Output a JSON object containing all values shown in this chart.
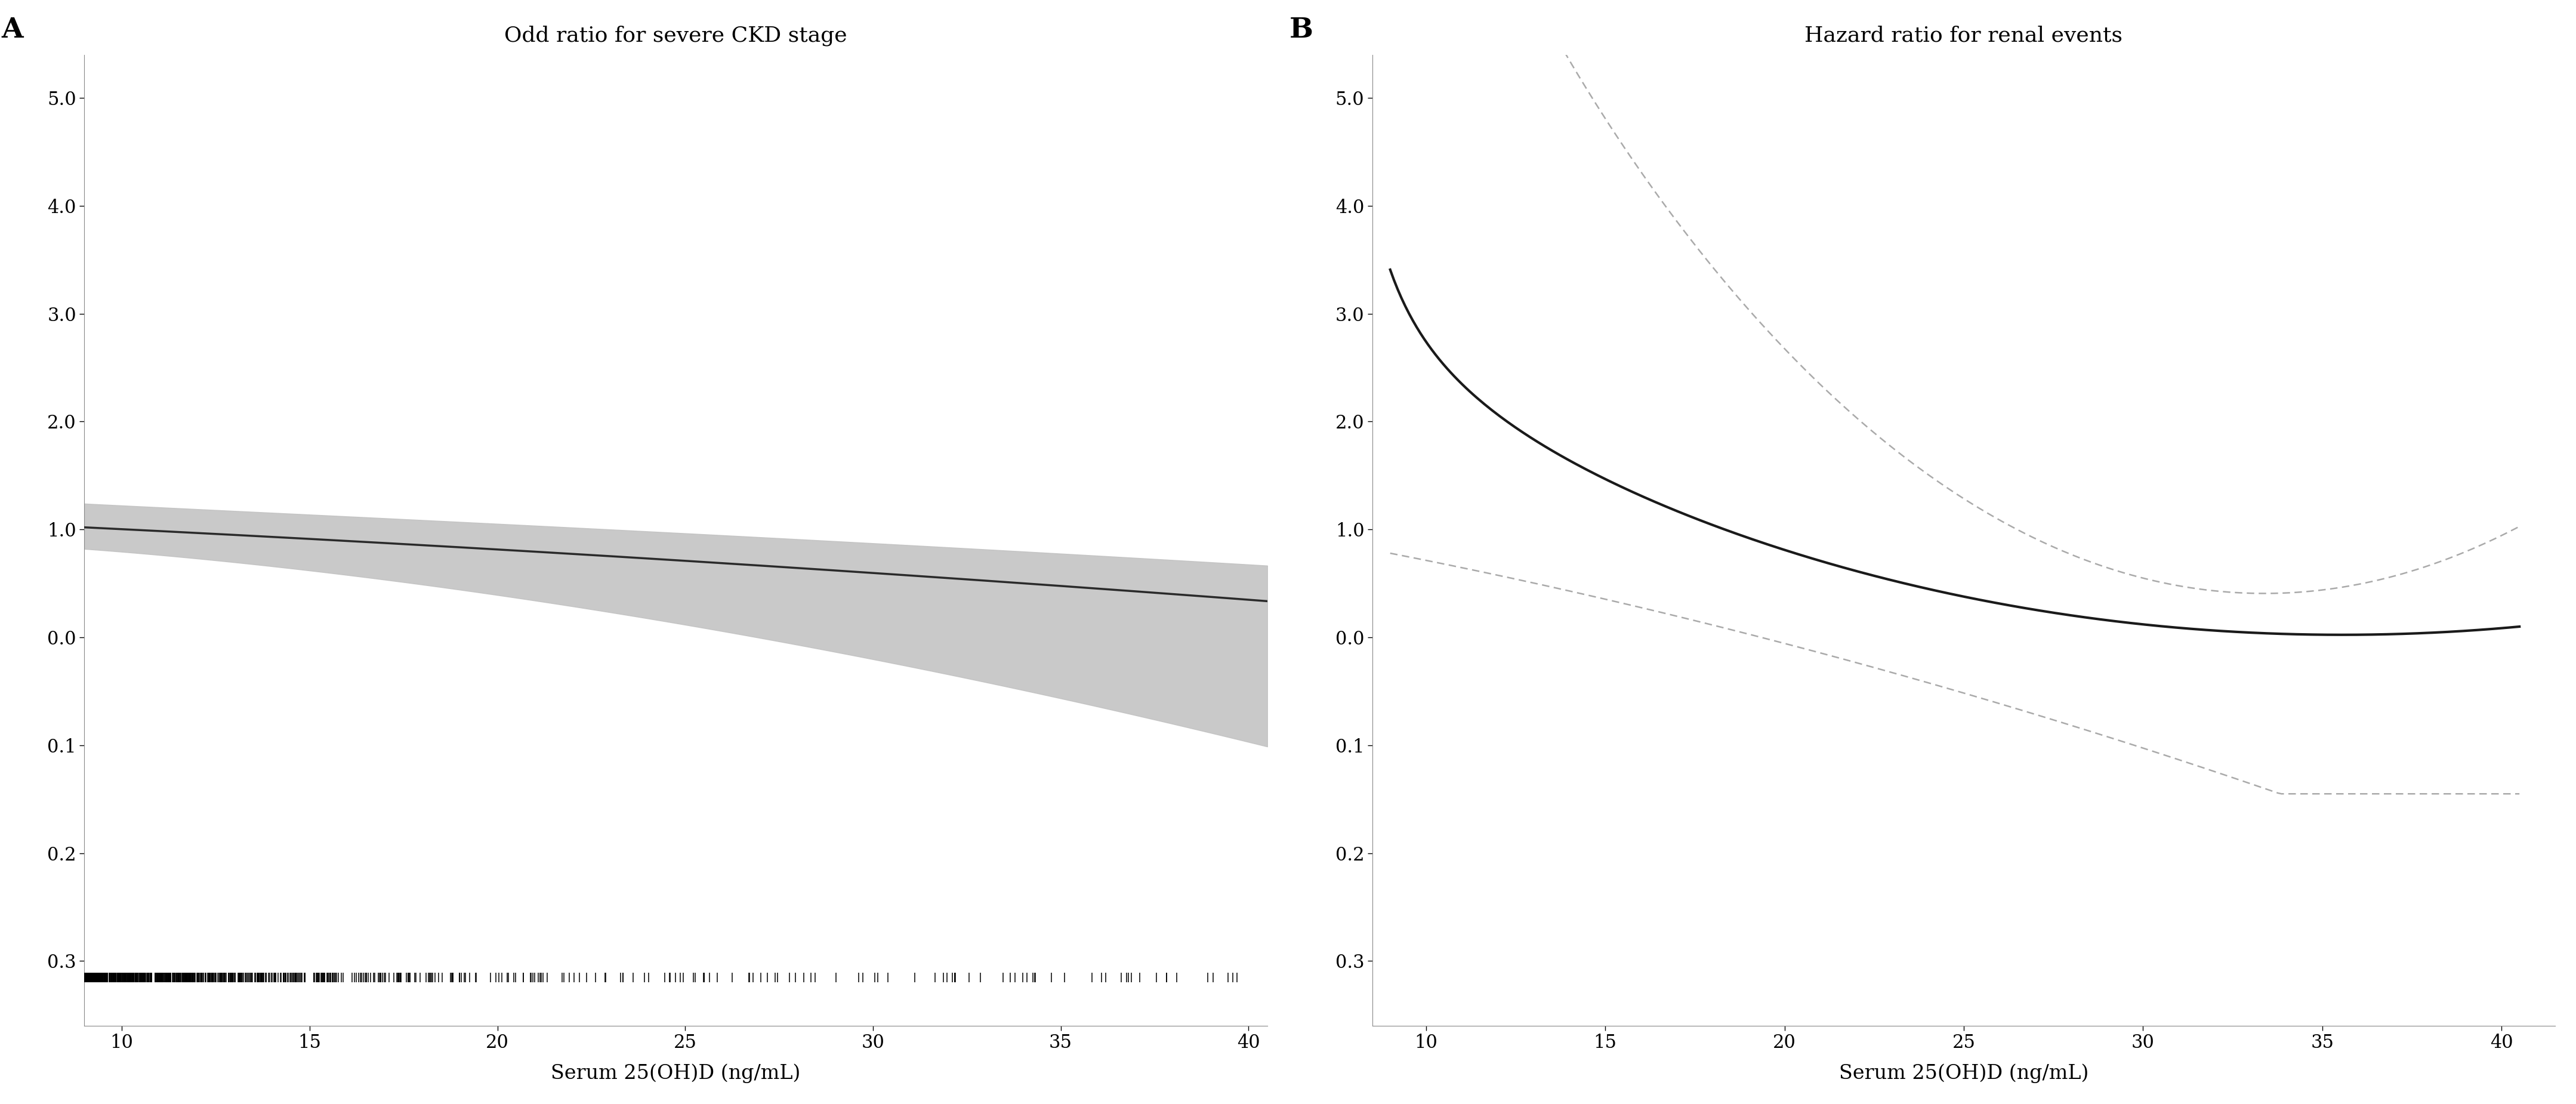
{
  "panel_A": {
    "title": "Odd ratio for severe CKD stage",
    "label": "A",
    "x_min": 9.0,
    "x_max": 40.5,
    "x_ticks": [
      10,
      15,
      20,
      25,
      30,
      35,
      40
    ],
    "xlabel": "Serum 25(OH)D (ng/mL)",
    "y_tick_positions": [
      5.0,
      4.0,
      3.0,
      2.0,
      1.0,
      0.0,
      -1.0,
      -2.0,
      -3.0
    ],
    "y_tick_labels": [
      "5.0",
      "4.0",
      "3.0",
      "2.0",
      "1.0",
      "0.0",
      "0.1",
      "0.2",
      "0.3"
    ],
    "y_min": -3.6,
    "y_max": 5.4,
    "y_rug": -3.15,
    "main_line_color": "#2a2a2a",
    "ci_fill_color": "#c0c0c0",
    "ci_fill_alpha": 0.85,
    "has_rug": true
  },
  "panel_B": {
    "title": "Hazard ratio for renal events",
    "label": "B",
    "x_min": 8.5,
    "x_max": 41.5,
    "x_ticks": [
      10,
      15,
      20,
      25,
      30,
      35,
      40
    ],
    "xlabel": "Serum 25(OH)D (ng/mL)",
    "y_tick_positions": [
      5.0,
      4.0,
      3.0,
      2.0,
      1.0,
      0.0,
      -1.0,
      -2.0,
      -3.0
    ],
    "y_tick_labels": [
      "5.0",
      "4.0",
      "3.0",
      "2.0",
      "1.0",
      "0.0",
      "0.1",
      "0.2",
      "0.3"
    ],
    "y_min": -3.6,
    "y_max": 5.4,
    "main_line_color": "#1a1a1a",
    "ci_line_color": "#aaaaaa",
    "has_rug": false
  },
  "background_color": "#ffffff",
  "font_family": "DejaVu Serif",
  "title_fontsize": 26,
  "tick_fontsize": 22,
  "label_fontsize": 24,
  "panel_label_fontsize": 34
}
